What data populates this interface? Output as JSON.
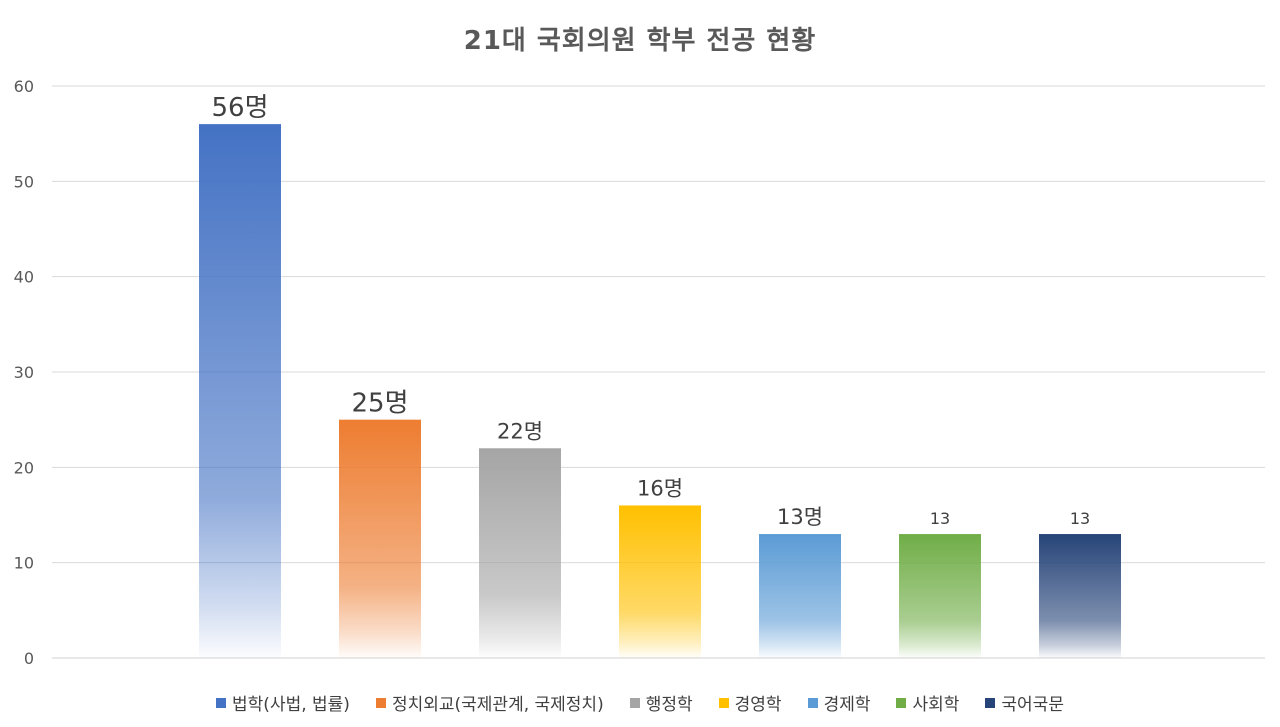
{
  "chart_data": {
    "type": "bar",
    "title": "21대 국회의원 학부 전공 현황",
    "categories": [
      "법학(사법, 법률)",
      "정치외교(국제관계, 국제정치)",
      "행정학",
      "경영학",
      "경제학",
      "사회학",
      "국어국문"
    ],
    "values": [
      56,
      25,
      22,
      16,
      13,
      13,
      13
    ],
    "data_labels": [
      "56명",
      "25명",
      "22명",
      "16명",
      "13명",
      "13",
      "13"
    ],
    "colors": [
      "#4472C4",
      "#ED7D31",
      "#A5A5A5",
      "#FFC000",
      "#5B9BD5",
      "#70AD47",
      "#264478"
    ],
    "ylim": [
      0,
      60
    ],
    "yticks": [
      0,
      10,
      20,
      30,
      40,
      50,
      60
    ],
    "grid": true,
    "legend_position": "bottom"
  }
}
